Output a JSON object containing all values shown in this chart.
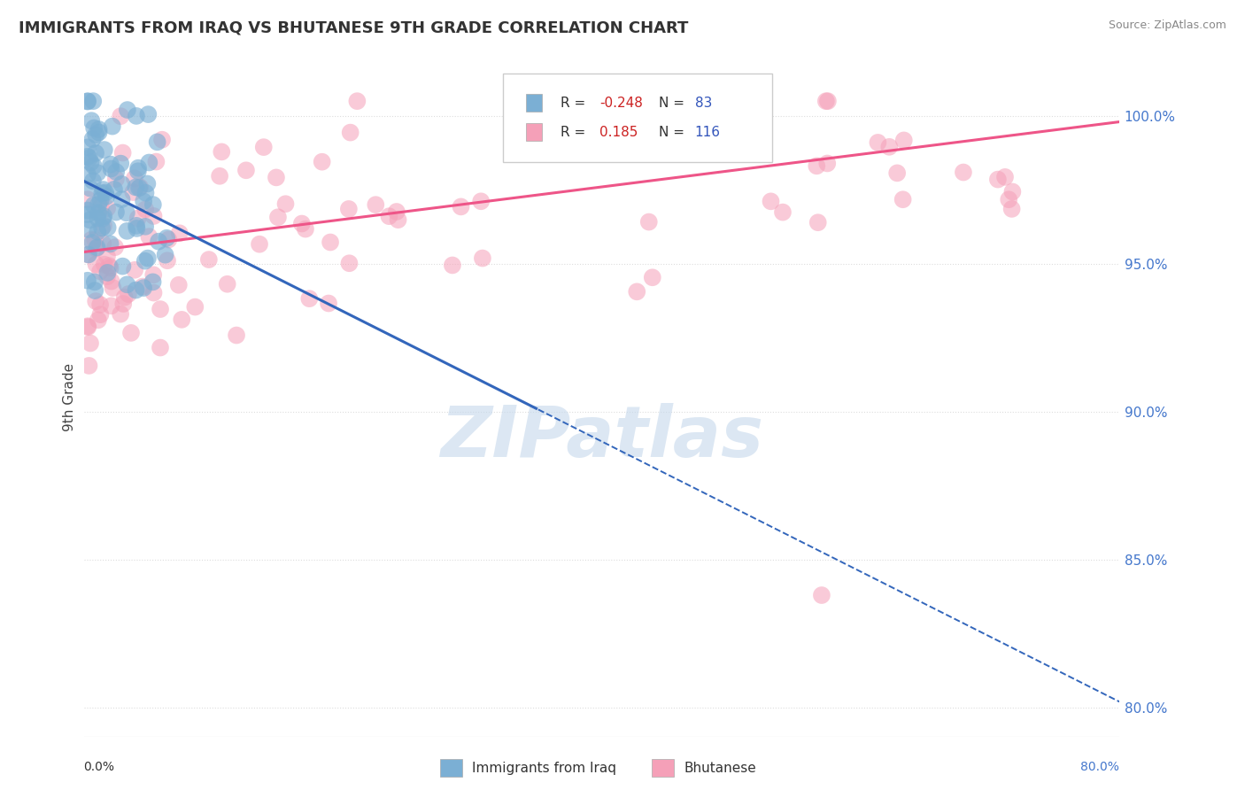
{
  "title": "IMMIGRANTS FROM IRAQ VS BHUTANESE 9TH GRADE CORRELATION CHART",
  "source": "Source: ZipAtlas.com",
  "ylabel": "9th Grade",
  "ylabel_right_ticks": [
    "100.0%",
    "95.0%",
    "90.0%",
    "85.0%",
    "80.0%"
  ],
  "ylabel_right_values": [
    1.0,
    0.95,
    0.9,
    0.85,
    0.8
  ],
  "xmin": 0.0,
  "xmax": 0.8,
  "ymin": 0.79,
  "ymax": 1.02,
  "iraq_R": -0.248,
  "iraq_N": 83,
  "bhutan_R": 0.185,
  "bhutan_N": 116,
  "iraq_color": "#7BAFD4",
  "bhutan_color": "#F5A0B8",
  "iraq_line_color": "#3366BB",
  "bhutan_line_color": "#EE5588",
  "iraq_line_solid_end": 0.35,
  "iraq_slope": -0.22,
  "iraq_intercept": 0.978,
  "bhutan_slope": 0.055,
  "bhutan_intercept": 0.954,
  "watermark": "ZIPatlas",
  "watermark_color": "#C5D8EC",
  "background_color": "#FFFFFF",
  "grid_color": "#DDDDDD",
  "title_color": "#333333",
  "legend_R_neg_color": "#CC2222",
  "legend_R_pos_color": "#CC2222",
  "legend_N_color": "#3355BB",
  "bottom_legend_labels": [
    "Immigrants from Iraq",
    "Bhutanese"
  ]
}
